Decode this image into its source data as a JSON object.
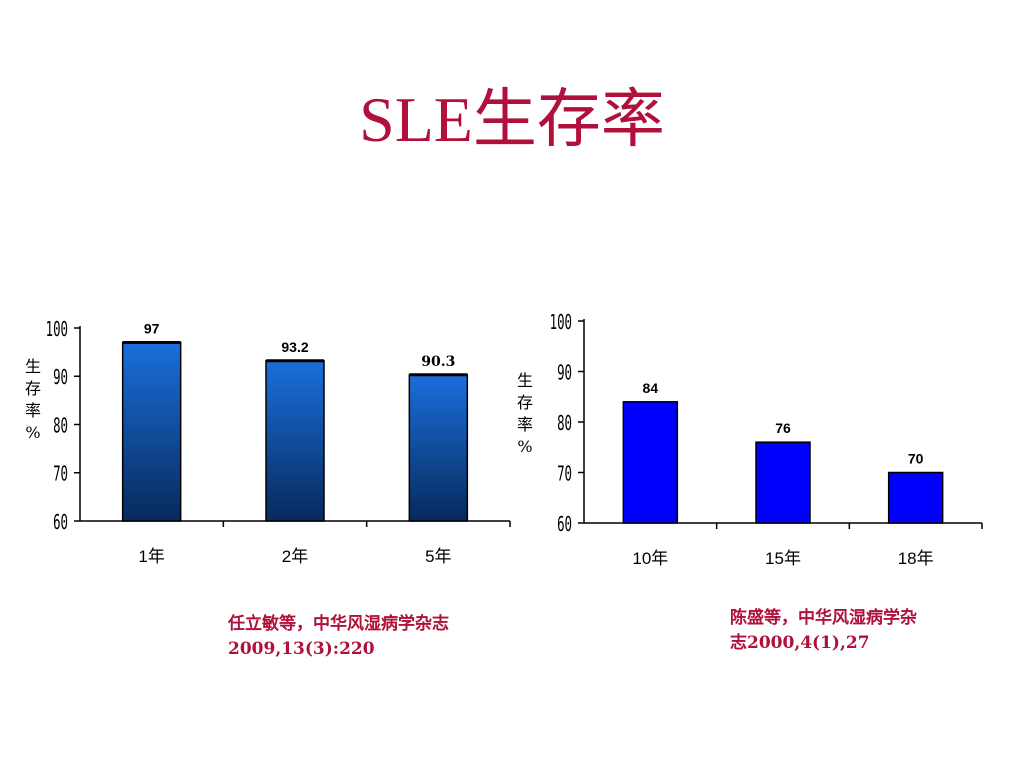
{
  "slide": {
    "title": "SLE生存率"
  },
  "chart_data": [
    {
      "type": "bar",
      "categories": [
        "1年",
        "2年",
        "5年"
      ],
      "values": [
        97,
        93.2,
        90.3
      ],
      "value_labels": [
        "97",
        "93.2",
        "90.3"
      ],
      "ylabel": "生存率%",
      "ylim": [
        60,
        100
      ],
      "yticks": [
        "60",
        "70",
        "80",
        "90",
        "100"
      ],
      "bar_style": "gradient",
      "colors": {
        "bar_top": "#1a6fdc",
        "bar_bottom": "#072a5c",
        "outline": "#000000"
      },
      "grid": false,
      "legend": "none"
    },
    {
      "type": "bar",
      "categories": [
        "10年",
        "15年",
        "18年"
      ],
      "values": [
        84,
        76,
        70
      ],
      "value_labels": [
        "84",
        "76",
        "70"
      ],
      "ylabel": "生存率%",
      "ylim": [
        60,
        100
      ],
      "yticks": [
        "60",
        "70",
        "80",
        "90",
        "100"
      ],
      "bar_style": "solid",
      "colors": {
        "bar": "#0000ff",
        "outline": "#000000"
      },
      "grid": false,
      "legend": "none"
    }
  ],
  "references": {
    "left": {
      "line1": "任立敏等，中华风湿病学杂志",
      "line2": "2009,13(3):220"
    },
    "right": {
      "line1": "陈盛等，中华风湿病学杂",
      "line2": "志2000,4(1),27"
    }
  }
}
